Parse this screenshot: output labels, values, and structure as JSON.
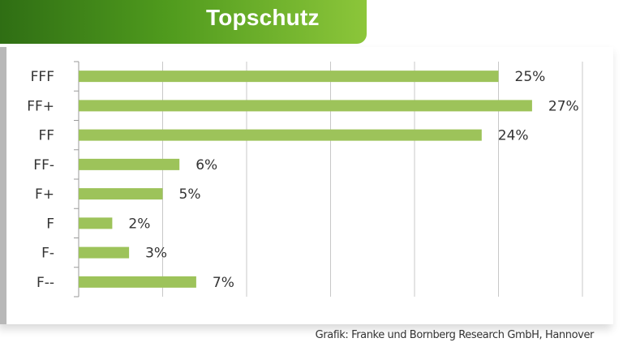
{
  "header": {
    "title": "Topschutz"
  },
  "source_note": "Grafik: Franke und Bornberg Research GmbH, Hannover",
  "colors": {
    "bar": "#9dc35a",
    "header_dark": "#2f6e14",
    "header_light": "#8cc63a",
    "grid": "#c8c8c8"
  },
  "chart_data": {
    "type": "bar",
    "orientation": "horizontal",
    "categories": [
      "FFF",
      "FF+",
      "FF",
      "FF-",
      "F+",
      "F",
      "F-",
      "F--"
    ],
    "values": [
      25,
      27,
      24,
      6,
      5,
      2,
      3,
      7
    ],
    "value_labels": [
      "25%",
      "27%",
      "24%",
      "6%",
      "5%",
      "2%",
      "3%",
      "7%"
    ],
    "xlim": [
      0,
      30
    ],
    "grid": true,
    "title": "Topschutz",
    "xlabel": "",
    "ylabel": ""
  }
}
